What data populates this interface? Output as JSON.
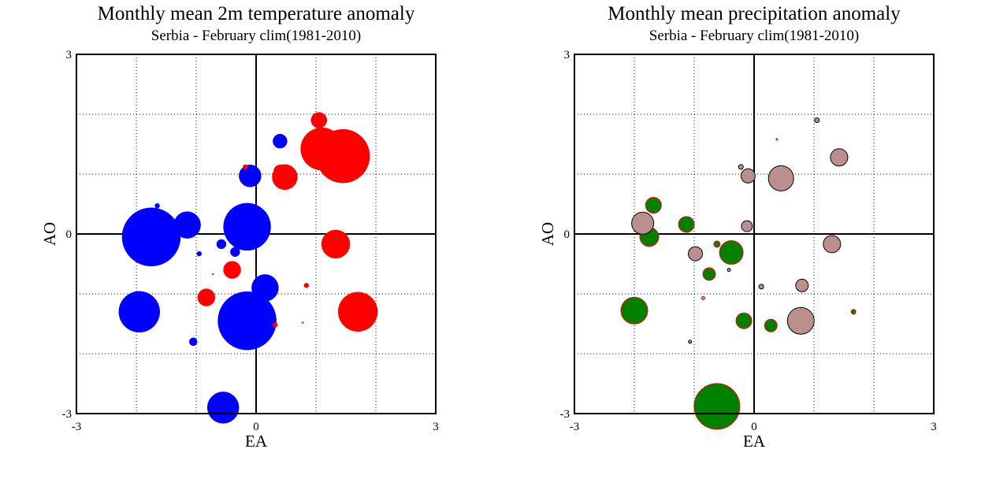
{
  "chart_data": [
    {
      "type": "scatter",
      "title": "Monthly mean 2m temperature anomaly",
      "subtitle": "Serbia - February  clim(1981-2010)",
      "xlabel": "EA",
      "ylabel": "AO",
      "xlim": [
        -3,
        3
      ],
      "ylim": [
        -3,
        3
      ],
      "xticks": [
        "-3",
        "0",
        "3"
      ],
      "yticks": [
        "3",
        "0",
        "-3"
      ],
      "grid": true,
      "colors": {
        "positive": "#ff0000",
        "negative": "#0000ff"
      },
      "points": [
        {
          "x": -1.75,
          "y": -0.05,
          "r": 37,
          "color": "#0000ff"
        },
        {
          "x": -0.15,
          "y": 0.12,
          "r": 30,
          "color": "#0000ff"
        },
        {
          "x": -0.15,
          "y": -1.45,
          "r": 37,
          "color": "#0000ff"
        },
        {
          "x": -1.95,
          "y": -1.3,
          "r": 26,
          "color": "#0000ff"
        },
        {
          "x": -1.15,
          "y": 0.15,
          "r": 17,
          "color": "#0000ff"
        },
        {
          "x": -0.55,
          "y": -2.9,
          "r": 20,
          "color": "#0000ff"
        },
        {
          "x": 0.15,
          "y": -0.9,
          "r": 17,
          "color": "#0000ff"
        },
        {
          "x": -0.1,
          "y": 0.97,
          "r": 14,
          "color": "#0000ff"
        },
        {
          "x": 0.4,
          "y": 1.55,
          "r": 9,
          "color": "#0000ff"
        },
        {
          "x": -0.58,
          "y": -0.17,
          "r": 6,
          "color": "#0000ff"
        },
        {
          "x": -0.35,
          "y": -0.3,
          "r": 6,
          "color": "#0000ff"
        },
        {
          "x": -1.05,
          "y": -1.8,
          "r": 5,
          "color": "#0000ff"
        },
        {
          "x": -0.95,
          "y": -0.33,
          "r": 3,
          "color": "#0000ff"
        },
        {
          "x": -1.65,
          "y": 0.47,
          "r": 3,
          "color": "#0000ff"
        },
        {
          "x": 1.45,
          "y": 1.3,
          "r": 34,
          "color": "#ff0000"
        },
        {
          "x": 1.1,
          "y": 1.42,
          "r": 27,
          "color": "#ff0000"
        },
        {
          "x": 1.7,
          "y": -1.3,
          "r": 25,
          "color": "#ff0000"
        },
        {
          "x": 1.33,
          "y": -0.17,
          "r": 18,
          "color": "#ff0000"
        },
        {
          "x": 0.48,
          "y": 0.95,
          "r": 16,
          "color": "#ff0000"
        },
        {
          "x": 1.05,
          "y": 1.9,
          "r": 10,
          "color": "#ff0000"
        },
        {
          "x": -0.4,
          "y": -0.6,
          "r": 11,
          "color": "#ff0000"
        },
        {
          "x": -0.83,
          "y": -1.06,
          "r": 11,
          "color": "#ff0000"
        },
        {
          "x": 0.4,
          "y": 1.05,
          "r": 8,
          "color": "#ff0000"
        },
        {
          "x": -0.18,
          "y": 1.12,
          "r": 3,
          "color": "#ff0000"
        },
        {
          "x": 0.84,
          "y": -0.86,
          "r": 3,
          "color": "#ff0000"
        },
        {
          "x": 0.32,
          "y": -1.52,
          "r": 3,
          "color": "#ff0000"
        },
        {
          "x": 0.78,
          "y": -1.48,
          "r": 1,
          "color": "#ff0000"
        },
        {
          "x": -0.72,
          "y": -0.67,
          "r": 1,
          "color": "#ff0000"
        }
      ]
    },
    {
      "type": "scatter",
      "title": "Monthly mean precipitation anomaly",
      "subtitle": "Serbia - February  clim(1981-2010)",
      "xlabel": "EA",
      "ylabel": "AO",
      "xlim": [
        -3,
        3
      ],
      "ylim": [
        -3,
        3
      ],
      "xticks": [
        "-3",
        "0",
        "3"
      ],
      "yticks": [
        "3",
        "0",
        "-3"
      ],
      "grid": true,
      "colors": {
        "wet": "#008000",
        "dry": "#bc8f8f",
        "wet_outline": "#ff0000",
        "dry_outline": "#000000"
      },
      "points": [
        {
          "x": -0.62,
          "y": -2.88,
          "r": 29,
          "color": "#008000",
          "stroke": "#ff0000"
        },
        {
          "x": -2.0,
          "y": -1.28,
          "r": 17,
          "color": "#008000",
          "stroke": "#ff0000"
        },
        {
          "x": -0.38,
          "y": -0.31,
          "r": 15,
          "color": "#008000",
          "stroke": "#ff0000"
        },
        {
          "x": -1.75,
          "y": -0.05,
          "r": 12,
          "color": "#008000",
          "stroke": "#ff0000"
        },
        {
          "x": -1.68,
          "y": 0.48,
          "r": 10,
          "color": "#008000",
          "stroke": "#ff0000"
        },
        {
          "x": -1.13,
          "y": 0.16,
          "r": 10,
          "color": "#008000",
          "stroke": "#ff0000"
        },
        {
          "x": -0.17,
          "y": -1.45,
          "r": 10,
          "color": "#008000",
          "stroke": "#ff0000"
        },
        {
          "x": -0.75,
          "y": -0.67,
          "r": 8,
          "color": "#008000",
          "stroke": "#ff0000"
        },
        {
          "x": 0.28,
          "y": -1.53,
          "r": 8,
          "color": "#008000",
          "stroke": "#ff0000"
        },
        {
          "x": -0.62,
          "y": -0.17,
          "r": 4,
          "color": "#008000",
          "stroke": "#ff0000"
        },
        {
          "x": 1.66,
          "y": -1.3,
          "r": 3,
          "color": "#008000",
          "stroke": "#ff0000"
        },
        {
          "x": -1.86,
          "y": 0.18,
          "r": 14,
          "color": "#bc8f8f",
          "stroke": "#000000"
        },
        {
          "x": 0.45,
          "y": 0.93,
          "r": 16,
          "color": "#bc8f8f",
          "stroke": "#000000"
        },
        {
          "x": 0.78,
          "y": -1.45,
          "r": 17,
          "color": "#bc8f8f",
          "stroke": "#000000"
        },
        {
          "x": 1.42,
          "y": 1.28,
          "r": 11,
          "color": "#bc8f8f",
          "stroke": "#000000"
        },
        {
          "x": 1.3,
          "y": -0.17,
          "r": 11,
          "color": "#bc8f8f",
          "stroke": "#000000"
        },
        {
          "x": -0.98,
          "y": -0.33,
          "r": 9,
          "color": "#bc8f8f",
          "stroke": "#000000"
        },
        {
          "x": -0.1,
          "y": 0.97,
          "r": 9,
          "color": "#bc8f8f",
          "stroke": "#000000"
        },
        {
          "x": 0.8,
          "y": -0.86,
          "r": 8,
          "color": "#bc8f8f",
          "stroke": "#000000"
        },
        {
          "x": -0.12,
          "y": 0.13,
          "r": 7,
          "color": "#bc8f8f",
          "stroke": "#000000"
        },
        {
          "x": -0.22,
          "y": 1.12,
          "r": 3,
          "color": "#bc8f8f",
          "stroke": "#000000"
        },
        {
          "x": 1.05,
          "y": 1.9,
          "r": 3,
          "color": "#bc8f8f",
          "stroke": "#000000"
        },
        {
          "x": -0.42,
          "y": -0.6,
          "r": 2,
          "color": "#bc8f8f",
          "stroke": "#000000"
        },
        {
          "x": 0.12,
          "y": -0.88,
          "r": 3,
          "color": "#bc8f8f",
          "stroke": "#000000"
        },
        {
          "x": -1.07,
          "y": -1.8,
          "r": 2,
          "color": "#bc8f8f",
          "stroke": "#000000"
        },
        {
          "x": -0.85,
          "y": -1.07,
          "r": 2,
          "color": "#bc8f8f",
          "stroke": "#ff0000"
        },
        {
          "x": 0.38,
          "y": 1.58,
          "r": 1,
          "color": "#bc8f8f",
          "stroke": "#ff0000"
        }
      ]
    }
  ]
}
